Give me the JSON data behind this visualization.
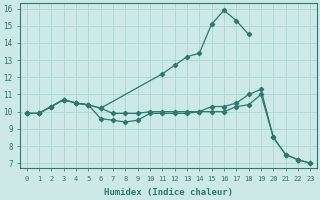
{
  "xlabel": "Humidex (Indice chaleur)",
  "bg_color": "#cce9e8",
  "grid_color": "#b0d8d5",
  "line_color": "#2a7a6e",
  "xlim": [
    -0.5,
    23.5
  ],
  "ylim": [
    6.7,
    16.3
  ],
  "xticks": [
    0,
    1,
    2,
    3,
    4,
    5,
    6,
    7,
    8,
    9,
    10,
    11,
    12,
    13,
    14,
    15,
    16,
    17,
    18,
    19,
    20,
    21,
    22,
    23
  ],
  "yticks": [
    7,
    8,
    9,
    10,
    11,
    12,
    13,
    14,
    15,
    16
  ],
  "series1_x": [
    0,
    1,
    2,
    3,
    4,
    5,
    6,
    11,
    12,
    13,
    14,
    15,
    16,
    17,
    18
  ],
  "series1_y": [
    9.9,
    9.9,
    10.3,
    10.7,
    10.5,
    10.4,
    10.2,
    12.2,
    12.7,
    13.2,
    13.4,
    15.1,
    15.9,
    15.3,
    14.5
  ],
  "series2_x": [
    0,
    1,
    2,
    3,
    4,
    5,
    6,
    7,
    8,
    9,
    10,
    11,
    12,
    13,
    14,
    15,
    16,
    17,
    18,
    19,
    20,
    21,
    22,
    23
  ],
  "series2_y": [
    9.9,
    9.9,
    10.3,
    10.7,
    10.5,
    10.4,
    10.2,
    9.9,
    9.9,
    9.9,
    10.0,
    10.0,
    10.0,
    10.0,
    10.0,
    10.3,
    10.3,
    10.5,
    11.0,
    11.3,
    8.5,
    7.5,
    7.2,
    7.0
  ],
  "series3_x": [
    0,
    1,
    2,
    3,
    4,
    5,
    6,
    7,
    8,
    9,
    10,
    11,
    12,
    13,
    14,
    15,
    16,
    17,
    18,
    19,
    20,
    21,
    22,
    23
  ],
  "series3_y": [
    9.9,
    9.9,
    10.3,
    10.7,
    10.5,
    10.4,
    9.6,
    9.5,
    9.4,
    9.5,
    9.9,
    9.9,
    9.9,
    9.9,
    10.0,
    10.0,
    10.0,
    10.3,
    10.4,
    11.0,
    8.5,
    7.5,
    7.2,
    7.0
  ]
}
